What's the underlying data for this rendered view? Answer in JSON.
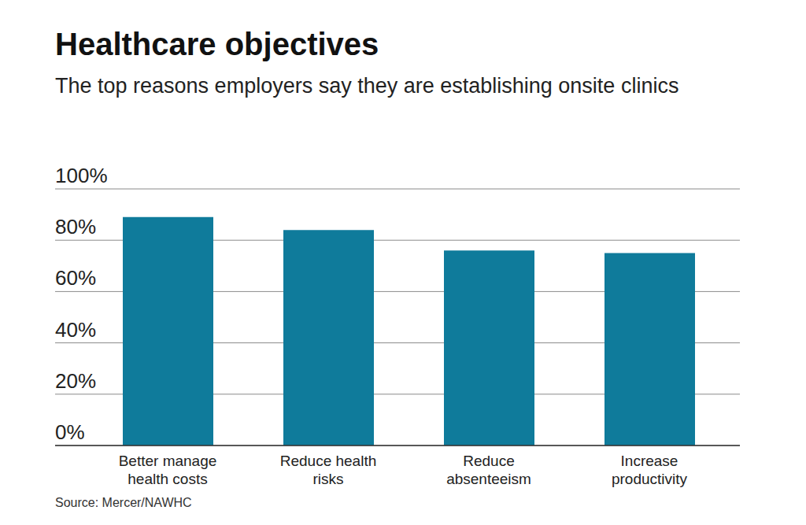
{
  "chart_data": {
    "type": "bar",
    "title": "Healthcare objectives",
    "subtitle": "The top reasons employers say they are establishing onsite clinics",
    "source": "Source: Mercer/NAWHC",
    "categories": [
      "Better manage health costs",
      "Reduce health risks",
      "Reduce absenteeism",
      "Increase productivity"
    ],
    "values": [
      89,
      84,
      76,
      75
    ],
    "color": "#0f7b9b",
    "ylim": [
      0,
      100
    ],
    "yticks": [
      {
        "value": 0,
        "label": "0%"
      },
      {
        "value": 20,
        "label": "20%"
      },
      {
        "value": 40,
        "label": "40%"
      },
      {
        "value": 60,
        "label": "60%"
      },
      {
        "value": 80,
        "label": "80%"
      },
      {
        "value": 100,
        "label": "100%"
      }
    ],
    "grid": true
  }
}
